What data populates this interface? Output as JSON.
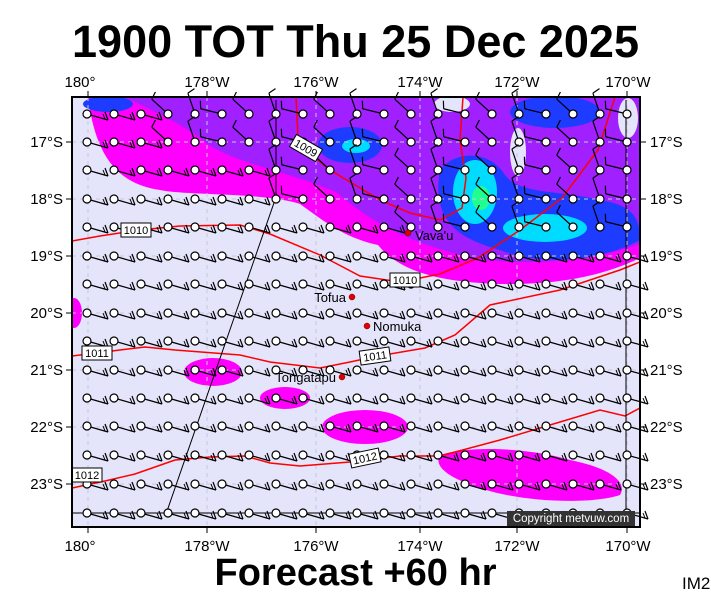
{
  "title": "1900 TOT Thu 25 Dec 2025",
  "footer": "Forecast +60 hr",
  "product_code": "IM2",
  "copyright": "Copyright metvuw.com",
  "lon_labels": [
    "180°",
    "178°W",
    "176°W",
    "174°W",
    "172°W",
    "170°W"
  ],
  "lat_labels": [
    "17°S",
    "18°S",
    "19°S",
    "20°S",
    "21°S",
    "22°S",
    "23°S"
  ],
  "isobar_labels": [
    "1009",
    "1010",
    "1010",
    "1011",
    "1011",
    "1012",
    "1012"
  ],
  "places": [
    {
      "name": "Vava'u"
    },
    {
      "name": "Tofua"
    },
    {
      "name": "Nomuka"
    },
    {
      "name": "Tongatapu"
    }
  ],
  "colors": {
    "background": "#e4e4fa",
    "rain_light": "#ff00ff",
    "rain_moderate": "#a020ff",
    "rain_heavy": "#1e3cff",
    "rain_very_heavy": "#00dcff",
    "rain_extreme": "#20ff90",
    "isobar": "#ff0000"
  }
}
